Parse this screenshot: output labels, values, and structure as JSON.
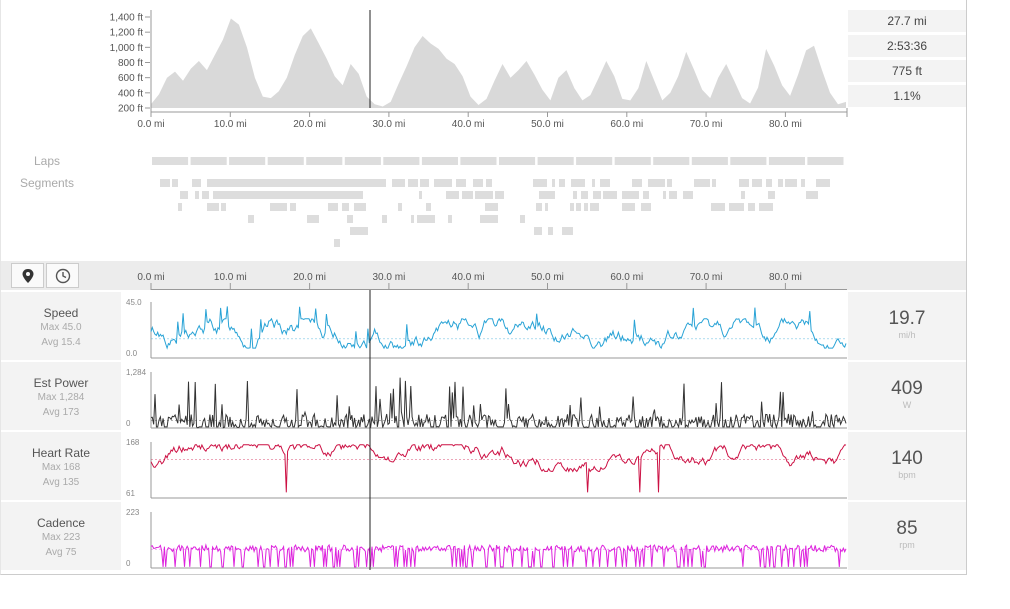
{
  "elevation": {
    "y_ticks": [
      "1,400 ft",
      "1,200 ft",
      "1,000 ft",
      "800 ft",
      "600 ft",
      "400 ft",
      "200 ft"
    ],
    "x_ticks": [
      "0.0 mi",
      "10.0 mi",
      "20.0 mi",
      "30.0 mi",
      "40.0 mi",
      "50.0 mi",
      "60.0 mi",
      "70.0 mi",
      "80.0 mi"
    ],
    "profile_ft": [
      250,
      380,
      600,
      680,
      560,
      720,
      820,
      700,
      900,
      1100,
      1380,
      1300,
      1000,
      600,
      350,
      330,
      420,
      600,
      900,
      1150,
      1250,
      1050,
      850,
      620,
      500,
      780,
      650,
      350,
      250,
      220,
      280,
      520,
      750,
      1000,
      1150,
      1050,
      980,
      850,
      780,
      620,
      350,
      240,
      320,
      560,
      780,
      600,
      700,
      820,
      640,
      440,
      300,
      600,
      700,
      460,
      300,
      370,
      590,
      820,
      620,
      320,
      300,
      460,
      820,
      560,
      300,
      400,
      620,
      940,
      700,
      440,
      330,
      600,
      780,
      560,
      330,
      260,
      470,
      980,
      760,
      500,
      360,
      640,
      960,
      1020,
      700,
      400,
      250,
      280
    ]
  },
  "summary_stats": [
    "27.7 mi",
    "2:53:36",
    "775 ft",
    "1.1%"
  ],
  "labels": {
    "laps": "Laps",
    "segments": "Segments"
  },
  "axis_ticks": [
    "0.0 mi",
    "10.0 mi",
    "20.0 mi",
    "30.0 mi",
    "40.0 mi",
    "50.0 mi",
    "60.0 mi",
    "70.0 mi",
    "80.0 mi"
  ],
  "toolbar": {
    "map_icon": "map-pin-icon",
    "time_icon": "clock-icon"
  },
  "colors": {
    "speed": "#29a3d6",
    "power": "#333333",
    "heart_rate": "#cc1144",
    "cadence": "#dd22dd",
    "elevation_fill": "#d9d9d9"
  },
  "metrics": [
    {
      "name": "Speed",
      "max": "Max 45.0",
      "avg": "Avg 15.4",
      "value": "19.7",
      "unit": "mi/h",
      "ymax_label": "45.0",
      "ymin_label": "0.0"
    },
    {
      "name": "Est Power",
      "max": "Max 1,284",
      "avg": "Avg 173",
      "value": "409",
      "unit": "W",
      "ymax_label": "1,284",
      "ymin_label": "0"
    },
    {
      "name": "Heart Rate",
      "max": "Max 168",
      "avg": "Avg 135",
      "value": "140",
      "unit": "bpm",
      "ymax_label": "168",
      "ymin_label": "61"
    },
    {
      "name": "Cadence",
      "max": "Max 223",
      "avg": "Avg 75",
      "value": "85",
      "unit": "rpm",
      "ymax_label": "223",
      "ymin_label": "0"
    }
  ]
}
